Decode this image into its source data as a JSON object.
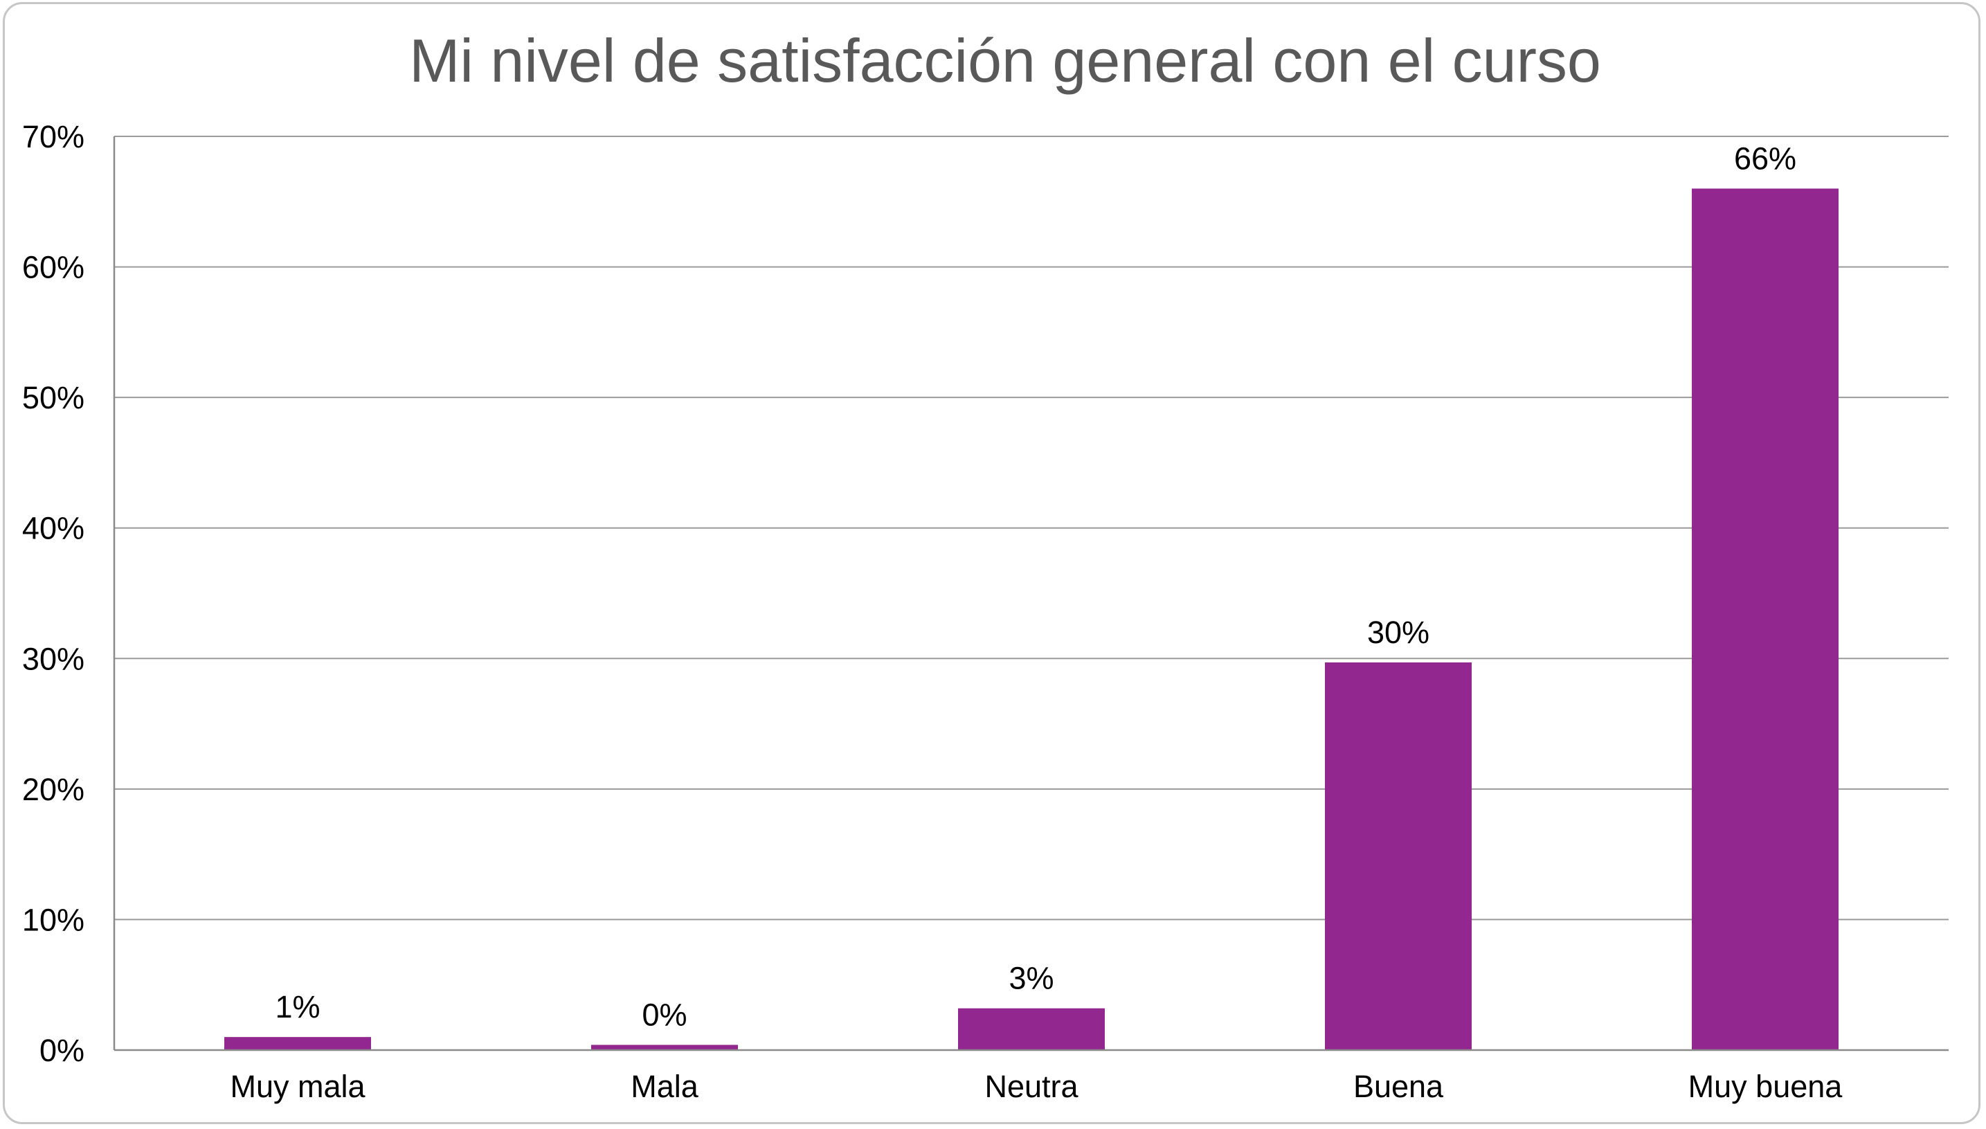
{
  "chart_data": {
    "type": "bar",
    "title": "Mi nivel de satisfacción general con el curso",
    "categories": [
      "Muy mala",
      "Mala",
      "Neutra",
      "Buena",
      "Muy buena"
    ],
    "values": [
      1,
      0.4,
      3.2,
      29.7,
      66
    ],
    "data_labels": [
      "1%",
      "0%",
      "3%",
      "30%",
      "66%"
    ],
    "y_ticks": [
      0,
      10,
      20,
      30,
      40,
      50,
      60,
      70
    ],
    "y_tick_labels": [
      "0%",
      "10%",
      "20%",
      "30%",
      "40%",
      "50%",
      "60%",
      "70%"
    ],
    "ylim": [
      0,
      70
    ],
    "y_unit": "%",
    "grid": true,
    "legend": "none",
    "bar_color": "#92278f"
  }
}
